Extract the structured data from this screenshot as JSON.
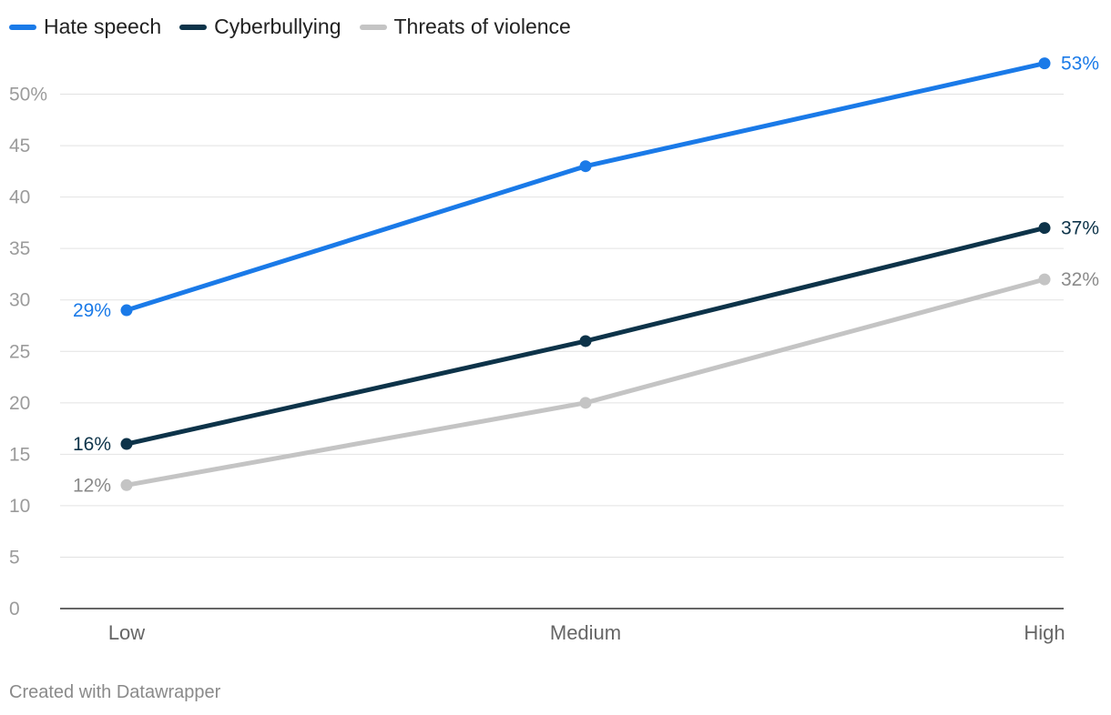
{
  "chart_data": {
    "type": "line",
    "title": "",
    "xlabel": "",
    "ylabel": "",
    "categories": [
      "Low",
      "Medium",
      "High"
    ],
    "series": [
      {
        "name": "Hate speech",
        "values": [
          29,
          43,
          53
        ],
        "color": "#1a7ae8"
      },
      {
        "name": "Cyberbullying",
        "values": [
          16,
          26,
          37
        ],
        "color": "#0d3349"
      },
      {
        "name": "Threats of violence",
        "values": [
          12,
          20,
          32
        ],
        "color": "#c4c4c4"
      }
    ],
    "ylim": [
      0,
      55
    ],
    "yticks": [
      0,
      5,
      10,
      15,
      20,
      25,
      30,
      35,
      40,
      45,
      50
    ],
    "ytick_labels": [
      "0",
      "5",
      "10",
      "15",
      "20",
      "25",
      "30",
      "35",
      "40",
      "45",
      "50%"
    ],
    "data_labels": {
      "Hate speech": {
        "Low": "29%",
        "High": "53%"
      },
      "Cyberbullying": {
        "Low": "16%",
        "High": "37%"
      },
      "Threats of violence": {
        "Low": "12%",
        "High": "32%"
      }
    },
    "grid": true,
    "legend_position": "top-left"
  },
  "footer": {
    "credit": "Created with Datawrapper"
  }
}
